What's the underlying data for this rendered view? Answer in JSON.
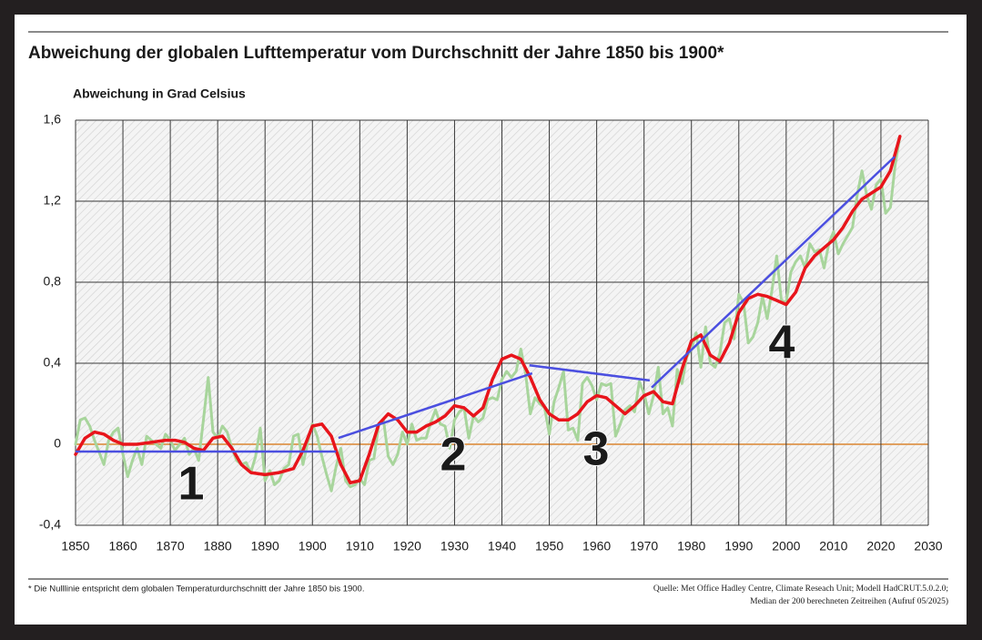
{
  "chart_data": {
    "type": "line",
    "title": "Abweichung der globalen Lufttemperatur vom Durchschnitt der Jahre 1850 bis 1900*",
    "y_label": "Abweichung in Grad Celsius",
    "footnote": "* Die Nulllinie entspricht dem globalen Temperaturdurchschnitt der Jahre 1850 bis 1900.",
    "source": [
      "Quelle: Met Office Hadley Centre, Climate Reseach Unit; Modell HadCRUT.5.0.2.0;",
      "Median der 200 berechneten Zeitreihen (Aufruf 05/2025)"
    ],
    "xlim": [
      1850,
      2030
    ],
    "xticks": [
      1850,
      1860,
      1870,
      1880,
      1890,
      1900,
      1910,
      1920,
      1930,
      1940,
      1950,
      1960,
      1970,
      1980,
      1990,
      2000,
      2010,
      2020,
      2030
    ],
    "ylim": [
      -0.4,
      1.6
    ],
    "yticks": [
      {
        "value": -0.4,
        "label": "-0,4"
      },
      0,
      {
        "value": 0.4,
        "label": "0,4"
      },
      {
        "value": 0.8,
        "label": "0,8"
      },
      {
        "value": 1.2,
        "label": "1,2"
      },
      {
        "value": 1.6,
        "label": "1,6"
      }
    ],
    "grid": true,
    "zero_line_color": "#e0a060",
    "series": [
      {
        "color": "#a8d59c",
        "x": [
          1850,
          1851,
          1852,
          1853,
          1854,
          1855,
          1856,
          1857,
          1858,
          1859,
          1860,
          1861,
          1862,
          1863,
          1864,
          1865,
          1866,
          1867,
          1868,
          1869,
          1870,
          1871,
          1872,
          1873,
          1874,
          1875,
          1876,
          1877,
          1878,
          1879,
          1880,
          1881,
          1882,
          1883,
          1884,
          1885,
          1886,
          1887,
          1888,
          1889,
          1890,
          1891,
          1892,
          1893,
          1894,
          1895,
          1896,
          1897,
          1898,
          1899,
          1900,
          1901,
          1902,
          1903,
          1904,
          1905,
          1906,
          1907,
          1908,
          1909,
          1910,
          1911,
          1912,
          1913,
          1914,
          1915,
          1916,
          1917,
          1918,
          1919,
          1920,
          1921,
          1922,
          1923,
          1924,
          1925,
          1926,
          1927,
          1928,
          1929,
          1930,
          1931,
          1932,
          1933,
          1934,
          1935,
          1936,
          1937,
          1938,
          1939,
          1940,
          1941,
          1942,
          1943,
          1944,
          1945,
          1946,
          1947,
          1948,
          1949,
          1950,
          1951,
          1952,
          1953,
          1954,
          1955,
          1956,
          1957,
          1958,
          1959,
          1960,
          1961,
          1962,
          1963,
          1964,
          1965,
          1966,
          1967,
          1968,
          1969,
          1970,
          1971,
          1972,
          1973,
          1974,
          1975,
          1976,
          1977,
          1978,
          1979,
          1980,
          1981,
          1982,
          1983,
          1984,
          1985,
          1986,
          1987,
          1988,
          1989,
          1990,
          1991,
          1992,
          1993,
          1994,
          1995,
          1996,
          1997,
          1998,
          1999,
          2000,
          2001,
          2002,
          2003,
          2004,
          2005,
          2006,
          2007,
          2008,
          2009,
          2010,
          2011,
          2012,
          2013,
          2014,
          2015,
          2016,
          2017,
          2018,
          2019,
          2020,
          2021,
          2022,
          2023,
          2024
        ],
        "values": [
          0.0,
          0.12,
          0.13,
          0.09,
          0.02,
          -0.04,
          -0.1,
          0.02,
          0.06,
          0.08,
          -0.05,
          -0.16,
          -0.08,
          -0.02,
          -0.1,
          0.04,
          0.02,
          0.0,
          -0.02,
          0.05,
          0.02,
          -0.03,
          0.0,
          0.03,
          -0.05,
          -0.02,
          -0.08,
          0.12,
          0.33,
          0.06,
          0.03,
          0.09,
          0.06,
          -0.02,
          -0.08,
          -0.1,
          -0.09,
          -0.14,
          -0.06,
          0.08,
          -0.18,
          -0.13,
          -0.2,
          -0.18,
          -0.12,
          -0.1,
          0.04,
          0.05,
          -0.1,
          0.01,
          0.1,
          0.04,
          -0.06,
          -0.15,
          -0.23,
          -0.11,
          -0.02,
          -0.18,
          -0.21,
          -0.2,
          -0.17,
          -0.2,
          -0.08,
          -0.07,
          0.1,
          0.12,
          -0.06,
          -0.1,
          -0.05,
          0.06,
          0.0,
          0.1,
          0.02,
          0.03,
          0.03,
          0.11,
          0.17,
          0.1,
          0.09,
          -0.02,
          0.12,
          0.16,
          0.18,
          0.03,
          0.14,
          0.11,
          0.13,
          0.22,
          0.23,
          0.22,
          0.32,
          0.36,
          0.33,
          0.36,
          0.47,
          0.35,
          0.15,
          0.23,
          0.2,
          0.18,
          0.05,
          0.21,
          0.28,
          0.36,
          0.07,
          0.08,
          0.02,
          0.3,
          0.33,
          0.29,
          0.22,
          0.3,
          0.29,
          0.3,
          0.04,
          0.1,
          0.17,
          0.19,
          0.16,
          0.31,
          0.25,
          0.15,
          0.24,
          0.38,
          0.15,
          0.18,
          0.09,
          0.37,
          0.3,
          0.43,
          0.47,
          0.55,
          0.38,
          0.58,
          0.4,
          0.38,
          0.45,
          0.6,
          0.62,
          0.52,
          0.74,
          0.7,
          0.5,
          0.53,
          0.6,
          0.73,
          0.62,
          0.76,
          0.93,
          0.71,
          0.7,
          0.85,
          0.9,
          0.93,
          0.87,
          0.99,
          0.95,
          0.96,
          0.87,
          0.99,
          1.05,
          0.94,
          0.99,
          1.03,
          1.07,
          1.23,
          1.35,
          1.23,
          1.16,
          1.28,
          1.31,
          1.14,
          1.17,
          1.38,
          1.52
        ]
      },
      {
        "color": "#e8141b",
        "x": [
          1850,
          1852,
          1854,
          1856,
          1858,
          1860,
          1863,
          1866,
          1869,
          1871,
          1873,
          1875,
          1877,
          1879,
          1881,
          1883,
          1885,
          1887,
          1890,
          1893,
          1896,
          1898,
          1900,
          1902,
          1904,
          1906,
          1908,
          1910,
          1912,
          1914,
          1916,
          1918,
          1920,
          1922,
          1924,
          1926,
          1928,
          1930,
          1932,
          1934,
          1936,
          1938,
          1940,
          1942,
          1944,
          1946,
          1948,
          1950,
          1952,
          1954,
          1956,
          1958,
          1960,
          1962,
          1964,
          1966,
          1968,
          1970,
          1972,
          1974,
          1976,
          1978,
          1980,
          1982,
          1984,
          1986,
          1988,
          1990,
          1992,
          1994,
          1996,
          1998,
          2000,
          2002,
          2004,
          2006,
          2008,
          2010,
          2012,
          2014,
          2016,
          2018,
          2020,
          2022,
          2024
        ],
        "values": [
          -0.05,
          0.03,
          0.06,
          0.05,
          0.02,
          0.0,
          0.0,
          0.01,
          0.02,
          0.02,
          0.01,
          -0.02,
          -0.03,
          0.03,
          0.04,
          -0.02,
          -0.1,
          -0.14,
          -0.15,
          -0.14,
          -0.12,
          -0.03,
          0.09,
          0.1,
          0.04,
          -0.1,
          -0.19,
          -0.18,
          -0.05,
          0.1,
          0.15,
          0.12,
          0.06,
          0.06,
          0.09,
          0.11,
          0.14,
          0.19,
          0.18,
          0.14,
          0.18,
          0.32,
          0.42,
          0.44,
          0.42,
          0.33,
          0.22,
          0.15,
          0.12,
          0.12,
          0.15,
          0.21,
          0.24,
          0.23,
          0.19,
          0.15,
          0.19,
          0.24,
          0.26,
          0.21,
          0.2,
          0.37,
          0.51,
          0.54,
          0.44,
          0.41,
          0.5,
          0.65,
          0.72,
          0.74,
          0.73,
          0.71,
          0.69,
          0.75,
          0.87,
          0.93,
          0.97,
          1.01,
          1.07,
          1.15,
          1.21,
          1.24,
          1.27,
          1.35,
          1.52
        ]
      }
    ],
    "trend_color": "#4b4fe0",
    "trend_lines": [
      {
        "x": [
          1850,
          1905
        ],
        "values": [
          -0.036,
          -0.036
        ]
      },
      {
        "x": [
          1905.5,
          1946.4
        ],
        "values": [
          0.031,
          0.35
        ]
      },
      {
        "x": [
          1945.8,
          1971.2
        ],
        "values": [
          0.39,
          0.315
        ]
      },
      {
        "x": [
          1971.6,
          2022.9
        ],
        "values": [
          0.28,
          1.42
        ]
      }
    ],
    "annotations": [
      "1",
      "2",
      "3",
      "4"
    ]
  }
}
